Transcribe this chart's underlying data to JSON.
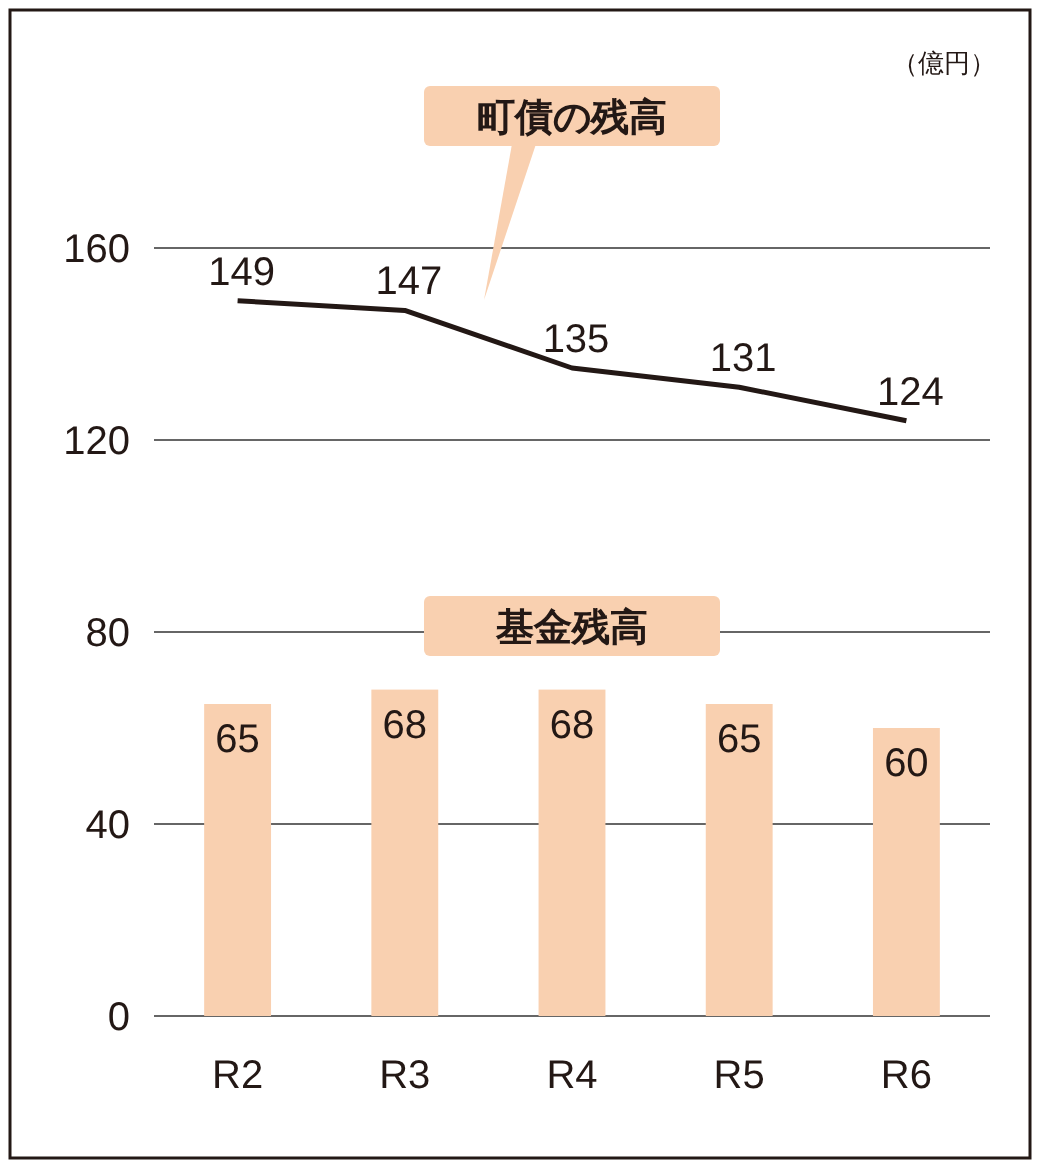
{
  "chart_data": {
    "type": "bar",
    "annotations": [
      "（億円）"
    ],
    "categories": [
      "R2",
      "R3",
      "R4",
      "R5",
      "R6"
    ],
    "series": [
      {
        "name": "基金残高",
        "color": "#f9d0b0",
        "values": [
          65,
          68,
          68,
          65,
          60
        ]
      },
      {
        "name": "町債の残高",
        "type": "line",
        "color": "#231815",
        "values": [
          149,
          147,
          135,
          131,
          124
        ]
      }
    ],
    "ylim": [
      0,
      160
    ],
    "yticks": [
      0,
      40,
      80,
      120,
      160
    ],
    "grid": "y",
    "data_labels": true,
    "marker": "none",
    "line_style": "solid"
  }
}
